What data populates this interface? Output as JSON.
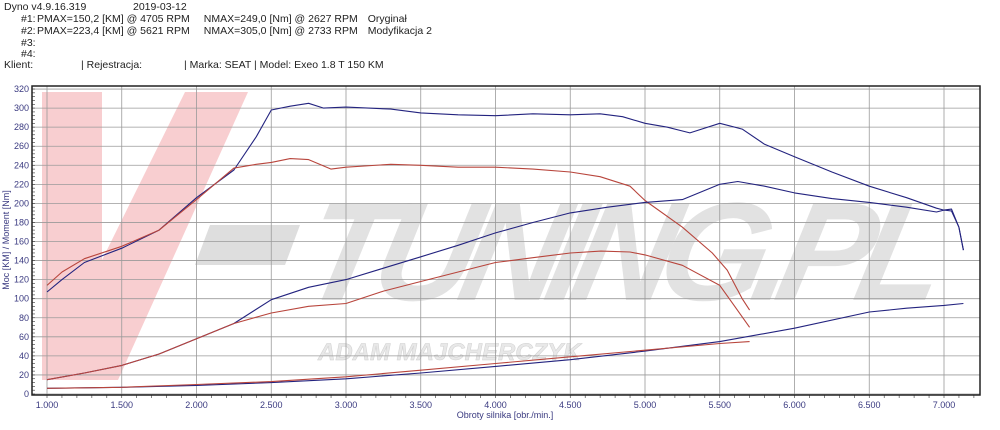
{
  "header": {
    "app": "Dyno v4.9.16.319",
    "date": "2019-03-12",
    "runs": [
      {
        "id": "#1:",
        "pmax": "PMAX=150,2 [KM] @ 4705 RPM",
        "nmax": "NMAX=249,0 [Nm] @ 2627 RPM",
        "label": "Oryginał"
      },
      {
        "id": "#2:",
        "pmax": "PMAX=223,4 [KM] @ 5621 RPM",
        "nmax": "NMAX=305,0 [Nm] @ 2733 RPM",
        "label": "Modyfikacja 2"
      },
      {
        "id": "#3:"
      },
      {
        "id": "#4:"
      }
    ],
    "client_label": "Klient:",
    "registration_label": "| Rejestracja:",
    "vehicle": "| Marka: SEAT | Model: Exeo 1.8 T 150 KM"
  },
  "watermark": {
    "brand": "V-TUNING.PL",
    "owner": "ADAM MAJCHERCZYK"
  },
  "colors": {
    "run1": "#b8453c",
    "run2": "#23237f",
    "grid": "#9a9a9a",
    "watermark_pink": "#f7c6c8",
    "watermark_gray": "#d6d6d6"
  },
  "chart_data": {
    "type": "line",
    "title": "",
    "xlabel": "Obroty silnika [obr./min.]",
    "ylabel": "Moc [KM] / Moment [Nm]",
    "xlim": [
      900,
      7250
    ],
    "ylim": [
      0,
      320
    ],
    "xticks": [
      1000,
      1500,
      2000,
      2500,
      3000,
      3500,
      4000,
      4500,
      5000,
      5500,
      6000,
      6500,
      7000
    ],
    "xtick_labels": [
      "1.000",
      "1.500",
      "2.000",
      "2.500",
      "3.000",
      "3.500",
      "4.000",
      "4.500",
      "5.000",
      "5.500",
      "6.000",
      "6.500",
      "7.000"
    ],
    "yticks": [
      0,
      20,
      40,
      60,
      80,
      100,
      120,
      140,
      160,
      180,
      200,
      220,
      240,
      260,
      280,
      300,
      320
    ],
    "grid": true,
    "series": [
      {
        "run": "#2",
        "quantity": "torque",
        "color": "#23237f",
        "x": [
          1000,
          1100,
          1250,
          1500,
          1750,
          2000,
          2250,
          2400,
          2500,
          2627,
          2750,
          2850,
          3000,
          3300,
          3500,
          3750,
          4000,
          4250,
          4500,
          4700,
          4850,
          5000,
          5150,
          5300,
          5500,
          5650,
          5800,
          6000,
          6250,
          6500,
          6750,
          6950,
          7000,
          7050,
          7100,
          7130
        ],
        "y": [
          107,
          120,
          138,
          153,
          172,
          206,
          235,
          270,
          298,
          302,
          305,
          300,
          301,
          299,
          295,
          293,
          292,
          294,
          293,
          294,
          291,
          284,
          280,
          274,
          284,
          278,
          262,
          249,
          233,
          218,
          206,
          195,
          193,
          194,
          175,
          151
        ]
      },
      {
        "run": "#1",
        "quantity": "torque",
        "color": "#b8453c",
        "x": [
          1000,
          1100,
          1250,
          1500,
          1750,
          2000,
          2250,
          2400,
          2500,
          2627,
          2750,
          2900,
          3000,
          3300,
          3500,
          3750,
          4000,
          4250,
          4500,
          4700,
          4900,
          5000,
          5250,
          5450,
          5550,
          5650,
          5700
        ],
        "y": [
          114,
          128,
          142,
          155,
          172,
          204,
          237,
          241,
          243,
          247,
          246,
          236,
          238,
          241,
          240,
          238,
          238,
          236,
          233,
          228,
          218,
          203,
          175,
          148,
          130,
          100,
          88
        ]
      },
      {
        "run": "#2",
        "quantity": "power",
        "color": "#23237f",
        "x": [
          1000,
          1250,
          1500,
          1750,
          2000,
          2250,
          2500,
          2750,
          3000,
          3250,
          3500,
          3750,
          4000,
          4250,
          4500,
          4750,
          5000,
          5250,
          5500,
          5621,
          5800,
          6000,
          6250,
          6500,
          6750,
          6950,
          7000,
          7050,
          7100,
          7130
        ],
        "y": [
          15,
          22,
          30,
          42,
          58,
          74,
          99,
          112,
          120,
          132,
          144,
          156,
          169,
          180,
          190,
          196,
          201,
          204,
          220,
          223,
          218,
          211,
          205,
          201,
          196,
          191,
          193,
          192,
          175,
          151
        ]
      },
      {
        "run": "#1",
        "quantity": "power",
        "color": "#b8453c",
        "x": [
          1000,
          1250,
          1500,
          1750,
          2000,
          2250,
          2500,
          2750,
          3000,
          3250,
          3500,
          3750,
          4000,
          4250,
          4500,
          4705,
          4900,
          5000,
          5250,
          5500,
          5600,
          5700
        ],
        "y": [
          15,
          22,
          30,
          42,
          58,
          74,
          85,
          92,
          95,
          108,
          118,
          128,
          138,
          143,
          148,
          150,
          149,
          146,
          135,
          114,
          92,
          70
        ]
      },
      {
        "run": "#2",
        "quantity": "loss",
        "color": "#23237f",
        "x": [
          1000,
          1500,
          2000,
          2500,
          3000,
          3500,
          4000,
          4500,
          5000,
          5500,
          6000,
          6500,
          6750,
          7000,
          7130
        ],
        "y": [
          6,
          7,
          9,
          12,
          16,
          22,
          29,
          36,
          45,
          55,
          69,
          86,
          90,
          93,
          95
        ]
      },
      {
        "run": "#1",
        "quantity": "loss",
        "color": "#b8453c",
        "x": [
          1000,
          1500,
          2000,
          2500,
          3000,
          3500,
          4000,
          4500,
          5000,
          5500,
          5700
        ],
        "y": [
          6,
          7,
          10,
          13,
          18,
          25,
          32,
          39,
          46,
          53,
          55
        ]
      }
    ]
  }
}
